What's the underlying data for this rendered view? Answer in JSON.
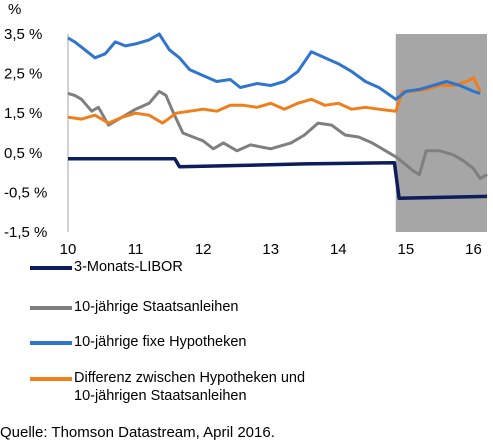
{
  "chart_data": {
    "type": "line",
    "title": "",
    "ylabel": "%",
    "xlabel": "",
    "x_ticks": [
      "10",
      "11",
      "12",
      "13",
      "14",
      "15",
      "16"
    ],
    "y_ticks": [
      "3,5 %",
      "2,5 %",
      "1,5 %",
      "0,5 %",
      "-0,5 %",
      "-1,5 %"
    ],
    "xlim": [
      2010.0,
      2016.2
    ],
    "ylim": [
      -1.5,
      3.5
    ],
    "grid": false,
    "shaded_region": {
      "from": 2014.85,
      "to": 2016.2,
      "color": "#a6a6a6"
    },
    "series": [
      {
        "name": "3-Monats-LIBOR",
        "color": "#0c1c5c",
        "points": [
          [
            2010.0,
            0.35
          ],
          [
            2011.58,
            0.35
          ],
          [
            2011.65,
            0.15
          ],
          [
            2012.5,
            0.18
          ],
          [
            2013.5,
            0.22
          ],
          [
            2014.83,
            0.25
          ],
          [
            2014.9,
            -0.65
          ],
          [
            2016.2,
            -0.6
          ]
        ]
      },
      {
        "name": "10-jährige Staatsanleihen",
        "color": "#7f7f7f",
        "points": [
          [
            2010.0,
            2.0
          ],
          [
            2010.1,
            1.95
          ],
          [
            2010.2,
            1.85
          ],
          [
            2010.35,
            1.55
          ],
          [
            2010.45,
            1.65
          ],
          [
            2010.6,
            1.2
          ],
          [
            2010.8,
            1.4
          ],
          [
            2011.0,
            1.6
          ],
          [
            2011.2,
            1.75
          ],
          [
            2011.35,
            2.05
          ],
          [
            2011.45,
            1.95
          ],
          [
            2011.55,
            1.55
          ],
          [
            2011.7,
            1.0
          ],
          [
            2011.85,
            0.9
          ],
          [
            2012.0,
            0.8
          ],
          [
            2012.15,
            0.6
          ],
          [
            2012.3,
            0.75
          ],
          [
            2012.5,
            0.55
          ],
          [
            2012.7,
            0.7
          ],
          [
            2013.0,
            0.6
          ],
          [
            2013.3,
            0.75
          ],
          [
            2013.5,
            0.95
          ],
          [
            2013.7,
            1.25
          ],
          [
            2013.9,
            1.2
          ],
          [
            2014.1,
            0.95
          ],
          [
            2014.3,
            0.9
          ],
          [
            2014.5,
            0.75
          ],
          [
            2014.7,
            0.55
          ],
          [
            2014.85,
            0.4
          ],
          [
            2015.0,
            0.2
          ],
          [
            2015.1,
            0.05
          ],
          [
            2015.2,
            -0.05
          ],
          [
            2015.3,
            0.55
          ],
          [
            2015.5,
            0.55
          ],
          [
            2015.7,
            0.45
          ],
          [
            2015.85,
            0.3
          ],
          [
            2016.0,
            0.1
          ],
          [
            2016.1,
            -0.15
          ],
          [
            2016.2,
            -0.05
          ]
        ]
      },
      {
        "name": "10-jährige fixe Hypotheken",
        "color": "#2f75ce",
        "points": [
          [
            2010.0,
            3.4
          ],
          [
            2010.1,
            3.3
          ],
          [
            2010.25,
            3.1
          ],
          [
            2010.4,
            2.9
          ],
          [
            2010.55,
            3.0
          ],
          [
            2010.7,
            3.3
          ],
          [
            2010.85,
            3.2
          ],
          [
            2011.0,
            3.25
          ],
          [
            2011.2,
            3.35
          ],
          [
            2011.35,
            3.5
          ],
          [
            2011.5,
            3.1
          ],
          [
            2011.65,
            2.9
          ],
          [
            2011.8,
            2.6
          ],
          [
            2012.0,
            2.45
          ],
          [
            2012.2,
            2.3
          ],
          [
            2012.4,
            2.35
          ],
          [
            2012.55,
            2.15
          ],
          [
            2012.8,
            2.25
          ],
          [
            2013.0,
            2.2
          ],
          [
            2013.2,
            2.3
          ],
          [
            2013.4,
            2.55
          ],
          [
            2013.6,
            3.05
          ],
          [
            2013.8,
            2.9
          ],
          [
            2014.0,
            2.75
          ],
          [
            2014.2,
            2.55
          ],
          [
            2014.4,
            2.3
          ],
          [
            2014.6,
            2.15
          ],
          [
            2014.85,
            1.85
          ],
          [
            2015.0,
            2.05
          ],
          [
            2015.2,
            2.1
          ],
          [
            2015.4,
            2.2
          ],
          [
            2015.6,
            2.3
          ],
          [
            2015.8,
            2.2
          ],
          [
            2016.0,
            2.05
          ],
          [
            2016.1,
            2.0
          ]
        ]
      },
      {
        "name": "Differenz zwischen Hypotheken und 10-jährigen Staatsanleihen",
        "color": "#f07e1b",
        "points": [
          [
            2010.0,
            1.4
          ],
          [
            2010.2,
            1.35
          ],
          [
            2010.4,
            1.45
          ],
          [
            2010.6,
            1.25
          ],
          [
            2010.8,
            1.4
          ],
          [
            2011.0,
            1.5
          ],
          [
            2011.2,
            1.45
          ],
          [
            2011.4,
            1.25
          ],
          [
            2011.6,
            1.5
          ],
          [
            2011.8,
            1.55
          ],
          [
            2012.0,
            1.6
          ],
          [
            2012.2,
            1.55
          ],
          [
            2012.4,
            1.7
          ],
          [
            2012.6,
            1.7
          ],
          [
            2012.8,
            1.65
          ],
          [
            2013.0,
            1.75
          ],
          [
            2013.2,
            1.6
          ],
          [
            2013.4,
            1.75
          ],
          [
            2013.6,
            1.85
          ],
          [
            2013.8,
            1.7
          ],
          [
            2014.0,
            1.75
          ],
          [
            2014.2,
            1.6
          ],
          [
            2014.4,
            1.65
          ],
          [
            2014.6,
            1.6
          ],
          [
            2014.85,
            1.55
          ],
          [
            2014.95,
            2.05
          ],
          [
            2015.1,
            2.05
          ],
          [
            2015.3,
            2.1
          ],
          [
            2015.5,
            2.2
          ],
          [
            2015.7,
            2.2
          ],
          [
            2015.9,
            2.3
          ],
          [
            2016.0,
            2.4
          ],
          [
            2016.1,
            2.05
          ]
        ]
      }
    ],
    "legend_position": "bottom"
  },
  "source": "Quelle: Thomson Datastream, April 2016."
}
